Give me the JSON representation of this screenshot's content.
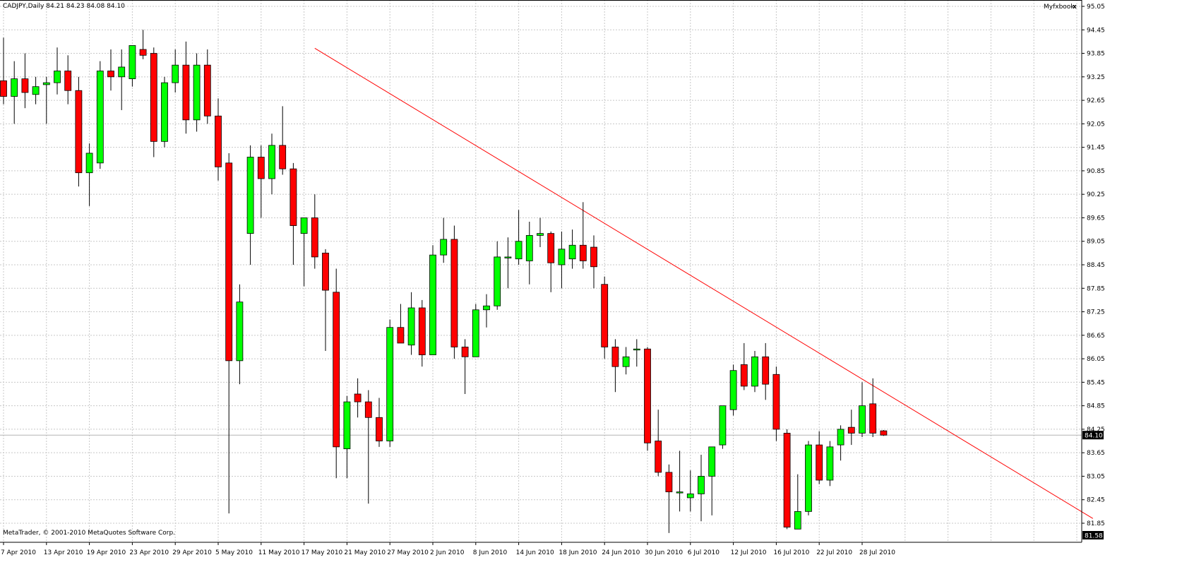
{
  "header": {
    "symbol_line": "CADJPY,Daily  84.21 84.23 84.08 84.10",
    "indicator_label": "Myfxbook",
    "close_glyph": "x"
  },
  "footer": {
    "copyright": "MetaTrader, © 2001-2010 MetaQuotes Software Corp."
  },
  "colors": {
    "bull": "#00ff00",
    "bear": "#ff0000",
    "grid": "#c8c8c8",
    "trendline": "#ff0000",
    "background": "#ffffff"
  },
  "chart_data": {
    "type": "candlestick",
    "symbol": "CADJPY",
    "timeframe": "Daily",
    "ohlc_last": {
      "open": 84.21,
      "high": 84.23,
      "low": 84.08,
      "close": 84.1
    },
    "price_axis_ticks": [
      "95.05",
      "94.45",
      "93.85",
      "93.25",
      "92.65",
      "92.05",
      "91.45",
      "90.85",
      "90.25",
      "89.65",
      "89.05",
      "88.45",
      "87.85",
      "87.25",
      "86.65",
      "86.05",
      "85.45",
      "84.85",
      "84.25",
      "83.65",
      "83.05",
      "82.45",
      "81.85"
    ],
    "ylim": [
      81.58,
      95.05
    ],
    "current_price_label": "84.10",
    "bottom_price_label": "81.58",
    "date_axis_ticks": [
      "7 Apr 2010",
      "13 Apr 2010",
      "19 Apr 2010",
      "23 Apr 2010",
      "29 Apr 2010",
      "5 May 2010",
      "11 May 2010",
      "17 May 2010",
      "21 May 2010",
      "27 May 2010",
      "2 Jun 2010",
      "8 Jun 2010",
      "14 Jun 2010",
      "18 Jun 2010",
      "24 Jun 2010",
      "30 Jun 2010",
      "6 Jul 2010",
      "12 Jul 2010",
      "16 Jul 2010",
      "22 Jul 2010",
      "28 Jul 2010"
    ],
    "candles": [
      {
        "o": 93.15,
        "h": 94.25,
        "l": 92.55,
        "c": 92.75
      },
      {
        "o": 92.75,
        "h": 93.65,
        "l": 92.05,
        "c": 93.2
      },
      {
        "o": 93.2,
        "h": 93.85,
        "l": 92.45,
        "c": 92.85
      },
      {
        "o": 92.8,
        "h": 93.25,
        "l": 92.55,
        "c": 93.0
      },
      {
        "o": 93.05,
        "h": 93.25,
        "l": 92.05,
        "c": 93.1
      },
      {
        "o": 93.1,
        "h": 94.0,
        "l": 92.8,
        "c": 93.4
      },
      {
        "o": 93.4,
        "h": 93.8,
        "l": 92.55,
        "c": 92.9
      },
      {
        "o": 92.9,
        "h": 93.25,
        "l": 90.45,
        "c": 90.8
      },
      {
        "o": 90.8,
        "h": 91.55,
        "l": 89.95,
        "c": 91.3
      },
      {
        "o": 91.05,
        "h": 93.65,
        "l": 90.9,
        "c": 93.4
      },
      {
        "o": 93.4,
        "h": 93.95,
        "l": 92.9,
        "c": 93.25
      },
      {
        "o": 93.25,
        "h": 93.95,
        "l": 92.4,
        "c": 93.5
      },
      {
        "o": 93.2,
        "h": 94.05,
        "l": 93.0,
        "c": 94.05
      },
      {
        "o": 93.95,
        "h": 94.45,
        "l": 93.7,
        "c": 93.8
      },
      {
        "o": 93.85,
        "h": 94.0,
        "l": 91.2,
        "c": 91.6
      },
      {
        "o": 91.6,
        "h": 93.25,
        "l": 91.45,
        "c": 93.1
      },
      {
        "o": 93.1,
        "h": 93.95,
        "l": 92.85,
        "c": 93.55
      },
      {
        "o": 93.55,
        "h": 94.15,
        "l": 91.8,
        "c": 92.15
      },
      {
        "o": 92.15,
        "h": 93.85,
        "l": 91.85,
        "c": 93.55
      },
      {
        "o": 93.55,
        "h": 93.95,
        "l": 92.05,
        "c": 92.25
      },
      {
        "o": 92.25,
        "h": 92.7,
        "l": 90.6,
        "c": 90.95
      },
      {
        "o": 91.05,
        "h": 91.3,
        "l": 82.1,
        "c": 86.0
      },
      {
        "o": 86.0,
        "h": 87.95,
        "l": 85.4,
        "c": 87.5
      },
      {
        "o": 89.25,
        "h": 91.5,
        "l": 88.45,
        "c": 91.2
      },
      {
        "o": 91.2,
        "h": 91.5,
        "l": 89.65,
        "c": 90.65
      },
      {
        "o": 90.65,
        "h": 91.8,
        "l": 90.25,
        "c": 91.5
      },
      {
        "o": 91.5,
        "h": 92.5,
        "l": 90.75,
        "c": 90.9
      },
      {
        "o": 90.9,
        "h": 91.05,
        "l": 88.45,
        "c": 89.45
      },
      {
        "o": 89.25,
        "h": 89.65,
        "l": 87.9,
        "c": 89.65
      },
      {
        "o": 89.65,
        "h": 90.25,
        "l": 88.35,
        "c": 88.65
      },
      {
        "o": 88.75,
        "h": 88.85,
        "l": 86.25,
        "c": 87.8
      },
      {
        "o": 87.75,
        "h": 88.35,
        "l": 83.0,
        "c": 83.8
      },
      {
        "o": 83.75,
        "h": 85.1,
        "l": 83.0,
        "c": 84.95
      },
      {
        "o": 85.15,
        "h": 85.55,
        "l": 84.55,
        "c": 84.95
      },
      {
        "o": 84.95,
        "h": 85.25,
        "l": 82.35,
        "c": 84.55
      },
      {
        "o": 84.55,
        "h": 85.05,
        "l": 83.8,
        "c": 83.95
      },
      {
        "o": 83.95,
        "h": 87.05,
        "l": 83.8,
        "c": 86.85
      },
      {
        "o": 86.85,
        "h": 87.45,
        "l": 86.45,
        "c": 86.45
      },
      {
        "o": 86.4,
        "h": 87.75,
        "l": 86.15,
        "c": 87.35
      },
      {
        "o": 87.35,
        "h": 87.55,
        "l": 85.85,
        "c": 86.15
      },
      {
        "o": 86.15,
        "h": 88.95,
        "l": 86.15,
        "c": 88.7
      },
      {
        "o": 88.7,
        "h": 89.65,
        "l": 88.5,
        "c": 89.1
      },
      {
        "o": 89.1,
        "h": 89.45,
        "l": 86.05,
        "c": 86.35
      },
      {
        "o": 86.35,
        "h": 86.55,
        "l": 85.15,
        "c": 86.1
      },
      {
        "o": 86.1,
        "h": 87.45,
        "l": 86.1,
        "c": 87.3
      },
      {
        "o": 87.3,
        "h": 87.7,
        "l": 86.85,
        "c": 87.4
      },
      {
        "o": 87.4,
        "h": 89.05,
        "l": 87.3,
        "c": 88.65
      },
      {
        "o": 88.65,
        "h": 89.15,
        "l": 87.85,
        "c": 88.65
      },
      {
        "o": 88.6,
        "h": 89.85,
        "l": 88.45,
        "c": 89.05
      },
      {
        "o": 88.55,
        "h": 89.55,
        "l": 87.95,
        "c": 89.2
      },
      {
        "o": 89.2,
        "h": 89.65,
        "l": 88.9,
        "c": 89.25
      },
      {
        "o": 89.25,
        "h": 89.3,
        "l": 87.75,
        "c": 88.5
      },
      {
        "o": 88.45,
        "h": 89.3,
        "l": 87.85,
        "c": 88.85
      },
      {
        "o": 88.6,
        "h": 89.35,
        "l": 88.35,
        "c": 88.95
      },
      {
        "o": 88.95,
        "h": 90.05,
        "l": 88.35,
        "c": 88.55
      },
      {
        "o": 88.9,
        "h": 89.2,
        "l": 87.85,
        "c": 88.4
      },
      {
        "o": 87.95,
        "h": 88.15,
        "l": 86.05,
        "c": 86.35
      },
      {
        "o": 86.35,
        "h": 86.55,
        "l": 85.2,
        "c": 85.85
      },
      {
        "o": 85.85,
        "h": 86.35,
        "l": 85.65,
        "c": 86.1
      },
      {
        "o": 86.3,
        "h": 86.55,
        "l": 85.85,
        "c": 86.3
      },
      {
        "o": 86.3,
        "h": 86.35,
        "l": 83.7,
        "c": 83.9
      },
      {
        "o": 83.95,
        "h": 84.75,
        "l": 83.05,
        "c": 83.15
      },
      {
        "o": 83.15,
        "h": 83.35,
        "l": 81.6,
        "c": 82.65
      },
      {
        "o": 82.65,
        "h": 83.7,
        "l": 82.15,
        "c": 82.65
      },
      {
        "o": 82.5,
        "h": 83.2,
        "l": 82.15,
        "c": 82.6
      },
      {
        "o": 82.6,
        "h": 83.6,
        "l": 81.9,
        "c": 83.05
      },
      {
        "o": 83.05,
        "h": 83.8,
        "l": 82.05,
        "c": 83.8
      },
      {
        "o": 83.85,
        "h": 84.85,
        "l": 83.75,
        "c": 84.85
      },
      {
        "o": 84.75,
        "h": 85.9,
        "l": 84.6,
        "c": 85.75
      },
      {
        "o": 85.9,
        "h": 86.45,
        "l": 85.25,
        "c": 85.35
      },
      {
        "o": 85.35,
        "h": 86.25,
        "l": 85.2,
        "c": 86.1
      },
      {
        "o": 86.1,
        "h": 86.45,
        "l": 85.0,
        "c": 85.4
      },
      {
        "o": 85.65,
        "h": 85.85,
        "l": 83.95,
        "c": 84.25
      },
      {
        "o": 84.15,
        "h": 84.25,
        "l": 81.7,
        "c": 81.75
      },
      {
        "o": 81.7,
        "h": 83.1,
        "l": 81.7,
        "c": 82.15
      },
      {
        "o": 82.15,
        "h": 83.95,
        "l": 82.05,
        "c": 83.85
      },
      {
        "o": 83.85,
        "h": 84.2,
        "l": 82.85,
        "c": 82.95
      },
      {
        "o": 82.95,
        "h": 83.95,
        "l": 82.8,
        "c": 83.8
      },
      {
        "o": 83.85,
        "h": 84.35,
        "l": 83.45,
        "c": 84.25
      },
      {
        "o": 84.3,
        "h": 84.75,
        "l": 83.85,
        "c": 84.15
      },
      {
        "o": 84.15,
        "h": 85.45,
        "l": 84.05,
        "c": 84.85
      },
      {
        "o": 84.9,
        "h": 85.55,
        "l": 84.05,
        "c": 84.15
      },
      {
        "o": 84.21,
        "h": 84.23,
        "l": 84.08,
        "c": 84.1
      }
    ],
    "trendline": {
      "from_index": 29,
      "from_price": 93.98,
      "to_index": 101.5,
      "to_price": 81.97
    },
    "grid": true
  }
}
